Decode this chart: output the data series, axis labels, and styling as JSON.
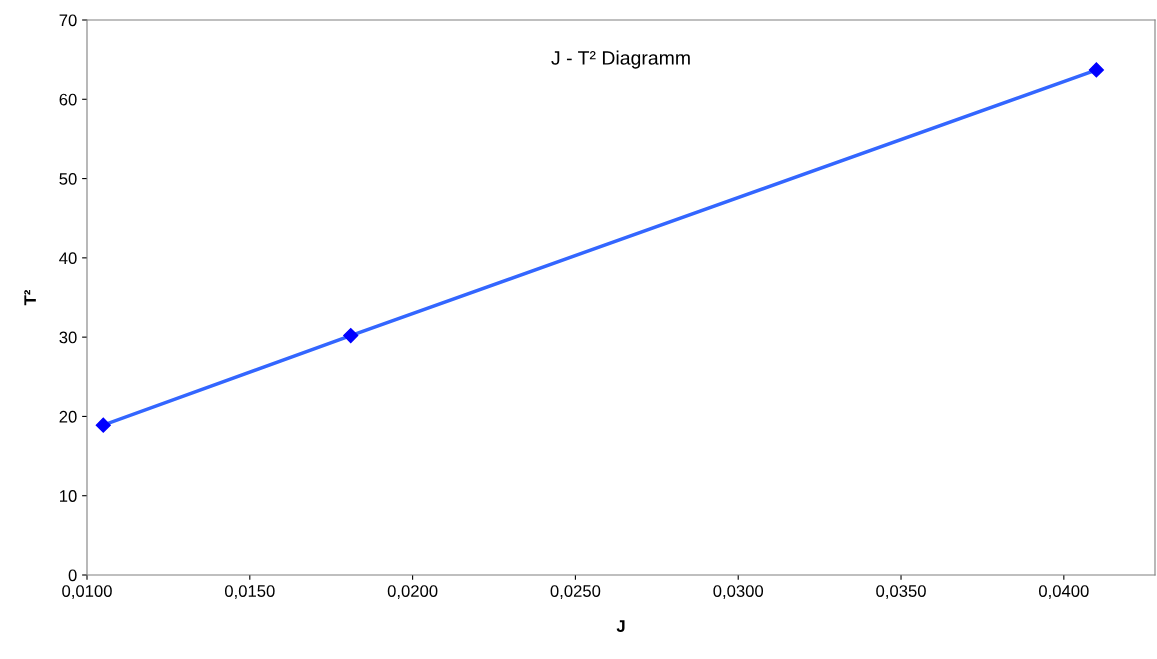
{
  "chart_data": {
    "type": "line",
    "title": "J - T² Diagramm",
    "xlabel": "J",
    "ylabel": "T²",
    "x": [
      0.0105,
      0.0181,
      0.041
    ],
    "series": [
      {
        "color": "#3366ff",
        "values": [
          18.9,
          30.2,
          63.7
        ]
      }
    ],
    "marker": "diamond",
    "line_style": "solid",
    "grid": false,
    "xlim": [
      0.01,
      0.0428
    ],
    "xticks": [
      {
        "value": 0.01,
        "label": "0,0100"
      },
      {
        "value": 0.015,
        "label": "0,0150"
      },
      {
        "value": 0.02,
        "label": "0,0200"
      },
      {
        "value": 0.025,
        "label": "0,0250"
      },
      {
        "value": 0.03,
        "label": "0,0300"
      },
      {
        "value": 0.035,
        "label": "0,0350"
      },
      {
        "value": 0.04,
        "label": "0,0400"
      }
    ],
    "ylim": [
      0,
      70
    ],
    "yticks": [
      0,
      10,
      20,
      30,
      40,
      50,
      60,
      70
    ]
  }
}
